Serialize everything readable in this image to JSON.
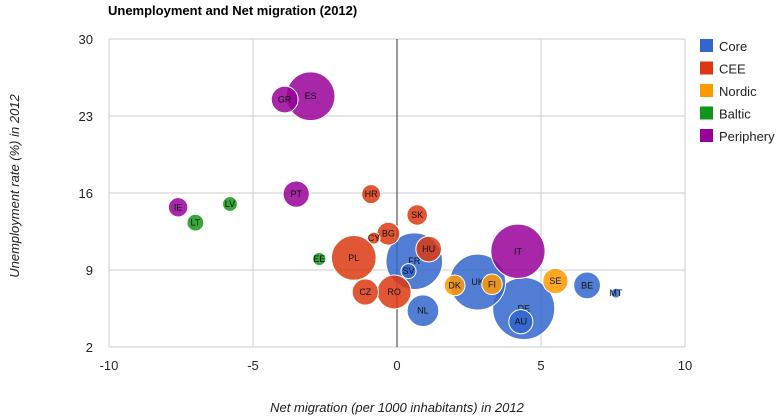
{
  "chart_data": {
    "type": "bubble",
    "title": "Unemployment and Net migration (2012)",
    "xlabel": "Net migration (per 1000 inhabitants) in 2012",
    "ylabel": "Unemployment rate (%) in 2012",
    "xlim": [
      -10,
      10
    ],
    "ylim": [
      2,
      30
    ],
    "xticks": [
      -10,
      -5,
      0,
      5,
      10
    ],
    "yticks": [
      2,
      9,
      16,
      23,
      30
    ],
    "xtick_labels": [
      "-10",
      "-5",
      "0",
      "5",
      "10"
    ],
    "ytick_labels": [
      "2",
      "9",
      "16",
      "23",
      "30"
    ],
    "legend_position": "right",
    "groups": [
      {
        "name": "Core",
        "color": "#3366cc"
      },
      {
        "name": "CEE",
        "color": "#dc3912"
      },
      {
        "name": "Nordic",
        "color": "#ff9900"
      },
      {
        "name": "Baltic",
        "color": "#109618"
      },
      {
        "name": "Periphery",
        "color": "#990099"
      }
    ],
    "points": [
      {
        "label": "GR",
        "x": -3.9,
        "y": 24.5,
        "size": 11.1,
        "group": "Periphery"
      },
      {
        "label": "ES",
        "x": -3.0,
        "y": 24.8,
        "size": 46.8,
        "group": "Periphery"
      },
      {
        "label": "PT",
        "x": -3.5,
        "y": 15.9,
        "size": 10.5,
        "group": "Periphery"
      },
      {
        "label": "IE",
        "x": -7.6,
        "y": 14.7,
        "size": 4.6,
        "group": "Periphery"
      },
      {
        "label": "IT",
        "x": 4.2,
        "y": 10.7,
        "size": 59.7,
        "group": "Periphery"
      },
      {
        "label": "LV",
        "x": -5.8,
        "y": 15.0,
        "size": 2.0,
        "group": "Baltic"
      },
      {
        "label": "LT",
        "x": -7.0,
        "y": 13.3,
        "size": 3.0,
        "group": "Baltic"
      },
      {
        "label": "EE",
        "x": -2.7,
        "y": 10.0,
        "size": 1.3,
        "group": "Baltic"
      },
      {
        "label": "HR",
        "x": -0.9,
        "y": 15.9,
        "size": 4.3,
        "group": "CEE"
      },
      {
        "label": "SK",
        "x": 0.7,
        "y": 14.0,
        "size": 5.4,
        "group": "CEE"
      },
      {
        "label": "BG",
        "x": -0.3,
        "y": 12.3,
        "size": 7.3,
        "group": "CEE"
      },
      {
        "label": "CY",
        "x": -0.8,
        "y": 11.9,
        "size": 0.9,
        "group": "CEE"
      },
      {
        "label": "HU",
        "x": 1.1,
        "y": 10.9,
        "size": 9.9,
        "group": "CEE"
      },
      {
        "label": "PL",
        "x": -1.5,
        "y": 10.1,
        "size": 38.5,
        "group": "CEE"
      },
      {
        "label": "CZ",
        "x": -1.1,
        "y": 7.0,
        "size": 10.5,
        "group": "CEE"
      },
      {
        "label": "RO",
        "x": -0.1,
        "y": 7.0,
        "size": 20.1,
        "group": "CEE"
      },
      {
        "label": "FR",
        "x": 0.6,
        "y": 9.8,
        "size": 65.7,
        "group": "Core"
      },
      {
        "label": "SV",
        "x": 0.4,
        "y": 8.9,
        "size": 2.1,
        "group": "Core"
      },
      {
        "label": "UK",
        "x": 2.8,
        "y": 7.9,
        "size": 63.9,
        "group": "Core"
      },
      {
        "label": "NL",
        "x": 0.9,
        "y": 5.3,
        "size": 16.8,
        "group": "Core"
      },
      {
        "label": "BE",
        "x": 6.6,
        "y": 7.6,
        "size": 11.1,
        "group": "Core"
      },
      {
        "label": "DE",
        "x": 4.4,
        "y": 5.5,
        "size": 80.5,
        "group": "Core"
      },
      {
        "label": "AU",
        "x": 4.3,
        "y": 4.3,
        "size": 8.4,
        "group": "Core"
      },
      {
        "label": "MT",
        "x": 7.6,
        "y": 6.9,
        "size": 0.4,
        "group": "Core"
      },
      {
        "label": "FI",
        "x": 3.3,
        "y": 7.7,
        "size": 5.4,
        "group": "Nordic"
      },
      {
        "label": "DK",
        "x": 2.0,
        "y": 7.6,
        "size": 5.6,
        "group": "Nordic"
      },
      {
        "label": "SE",
        "x": 5.5,
        "y": 8.0,
        "size": 9.5,
        "group": "Nordic"
      }
    ]
  }
}
